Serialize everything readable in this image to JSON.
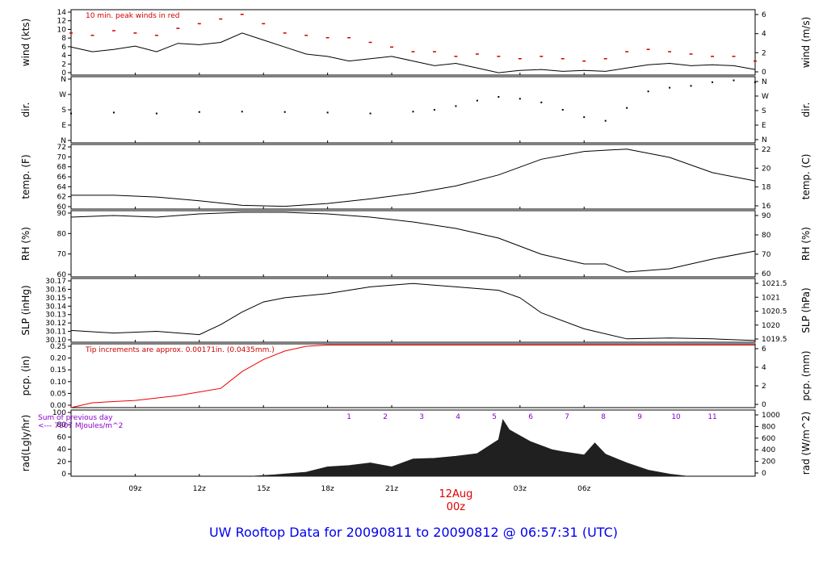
{
  "footer_title": "UW Rooftop Data for 20090811  to  20090812 @ 06:57:31  (UTC)",
  "colors": {
    "trace": "#000000",
    "peak": "#cc0000",
    "precip": "#ee0000",
    "rad": "#202020",
    "sun_hours": "#8800cc",
    "title": "#0000ee",
    "date": "#dd0000"
  },
  "chart_data": [
    {
      "type": "line",
      "ylabel_left": "wind (kts)",
      "ylabel_right": "wind (m/s)",
      "yticks_left": [
        "0",
        "2",
        "4",
        "6",
        "8",
        "10",
        "12",
        "14"
      ],
      "yticks_right": [
        "0",
        "2",
        "4",
        "6"
      ],
      "ylim_left": [
        0,
        14
      ],
      "annotation": "10 min. peak winds in red",
      "series": [
        {
          "values": [
            [
              0,
              6.0
            ],
            [
              1,
              5.0
            ],
            [
              2,
              5.5
            ],
            [
              3,
              6.2
            ],
            [
              4,
              5.0
            ],
            [
              5,
              6.8
            ],
            [
              6,
              6.5
            ],
            [
              7,
              7.0
            ],
            [
              8,
              9.0
            ],
            [
              9,
              7.5
            ],
            [
              10,
              6.0
            ],
            [
              11,
              4.5
            ],
            [
              12,
              4.0
            ],
            [
              13,
              3.0
            ],
            [
              14,
              3.5
            ],
            [
              15,
              4.0
            ],
            [
              16,
              3.0
            ],
            [
              17,
              2.0
            ],
            [
              18,
              2.5
            ],
            [
              19,
              1.5
            ],
            [
              20,
              0.5
            ],
            [
              21,
              1.0
            ],
            [
              22,
              1.2
            ],
            [
              23,
              0.8
            ],
            [
              24,
              1.0
            ],
            [
              25,
              0.8
            ],
            [
              26,
              1.5
            ],
            [
              27,
              2.2
            ],
            [
              28,
              2.5
            ],
            [
              29,
              2.0
            ],
            [
              30,
              2.2
            ],
            [
              31,
              2.0
            ],
            [
              32,
              1.2
            ]
          ]
        },
        {
          "values": [
            [
              0,
              9.0
            ],
            [
              1,
              8.5
            ],
            [
              2,
              9.5
            ],
            [
              3,
              9.0
            ],
            [
              4,
              8.5
            ],
            [
              5,
              10.0
            ],
            [
              6,
              11.0
            ],
            [
              7,
              12.0
            ],
            [
              8,
              13.0
            ],
            [
              9,
              11.0
            ],
            [
              10,
              9.0
            ],
            [
              11,
              8.5
            ],
            [
              12,
              8.0
            ],
            [
              13,
              8.0
            ],
            [
              14,
              7.0
            ],
            [
              15,
              6.0
            ],
            [
              16,
              5.0
            ],
            [
              17,
              5.0
            ],
            [
              18,
              4.0
            ],
            [
              19,
              4.5
            ],
            [
              20,
              4.0
            ],
            [
              21,
              3.5
            ],
            [
              22,
              4.0
            ],
            [
              23,
              3.5
            ],
            [
              24,
              3.0
            ],
            [
              25,
              3.5
            ],
            [
              26,
              5.0
            ],
            [
              27,
              5.5
            ],
            [
              28,
              5.0
            ],
            [
              29,
              4.5
            ],
            [
              30,
              4.0
            ],
            [
              31,
              4.0
            ],
            [
              32,
              3.0
            ]
          ]
        }
      ]
    },
    {
      "type": "scatter",
      "ylabel_left": "dir.",
      "ylabel_right": "dir.",
      "yticks_left": [
        "N",
        "E",
        "S",
        "W",
        "N"
      ],
      "yticks_right": [
        "N",
        "E",
        "S",
        "W",
        "N"
      ],
      "ylim_left": [
        0,
        360
      ],
      "series": [
        {
          "values": [
            [
              0,
              160
            ],
            [
              2,
              165
            ],
            [
              4,
              160
            ],
            [
              6,
              168
            ],
            [
              8,
              170
            ],
            [
              10,
              168
            ],
            [
              12,
              165
            ],
            [
              14,
              160
            ],
            [
              16,
              170
            ],
            [
              17,
              180
            ],
            [
              18,
              200
            ],
            [
              19,
              230
            ],
            [
              20,
              250
            ],
            [
              21,
              240
            ],
            [
              22,
              220
            ],
            [
              23,
              180
            ],
            [
              24,
              140
            ],
            [
              25,
              120
            ],
            [
              26,
              190
            ],
            [
              27,
              280
            ],
            [
              28,
              300
            ],
            [
              29,
              310
            ],
            [
              30,
              330
            ],
            [
              31,
              340
            ],
            [
              32,
              330
            ]
          ]
        }
      ]
    },
    {
      "type": "line",
      "ylabel_left": "temp. (F)",
      "ylabel_right": "temp. (C)",
      "yticks_left": [
        "60",
        "62",
        "64",
        "66",
        "68",
        "70",
        "72"
      ],
      "yticks_right": [
        "16",
        "18",
        "20",
        "22"
      ],
      "ylim_left": [
        59,
        73
      ],
      "series": [
        {
          "values": [
            [
              0,
              62.0
            ],
            [
              2,
              62.0
            ],
            [
              4,
              61.6
            ],
            [
              6,
              60.8
            ],
            [
              8,
              59.8
            ],
            [
              10,
              59.6
            ],
            [
              12,
              60.2
            ],
            [
              14,
              61.2
            ],
            [
              16,
              62.4
            ],
            [
              18,
              64.0
            ],
            [
              20,
              66.4
            ],
            [
              22,
              69.8
            ],
            [
              24,
              71.5
            ],
            [
              26,
              72.0
            ],
            [
              28,
              70.2
            ],
            [
              30,
              66.9
            ],
            [
              32,
              65.1
            ]
          ]
        }
      ]
    },
    {
      "type": "line",
      "ylabel_left": "RH (%)",
      "ylabel_right": "RH (%)",
      "yticks_left": [
        "60",
        "70",
        "80",
        "90"
      ],
      "yticks_right": [
        "60",
        "70",
        "80",
        "90"
      ],
      "ylim_left": [
        54,
        95
      ],
      "series": [
        {
          "values": [
            [
              0,
              91
            ],
            [
              2,
              92
            ],
            [
              4,
              91
            ],
            [
              6,
              93
            ],
            [
              8,
              94
            ],
            [
              10,
              94
            ],
            [
              12,
              93
            ],
            [
              14,
              91
            ],
            [
              16,
              88
            ],
            [
              18,
              84
            ],
            [
              20,
              78
            ],
            [
              22,
              68
            ],
            [
              24,
              62
            ],
            [
              25,
              62
            ],
            [
              26,
              57
            ],
            [
              28,
              59
            ],
            [
              30,
              65
            ],
            [
              32,
              70
            ]
          ]
        }
      ]
    },
    {
      "type": "line",
      "ylabel_left": "SLP (inHg)",
      "ylabel_right": "SLP (hPa)",
      "yticks_left": [
        "30.10",
        "30.11",
        "30.12",
        "30.13",
        "30.14",
        "30.15",
        "30.16",
        "30.17"
      ],
      "yticks_right": [
        "1019.5",
        "1020",
        "1020.5",
        "1021",
        "1021.5"
      ],
      "ylim_left": [
        30.097,
        30.173
      ],
      "series": [
        {
          "values": [
            [
              0,
              30.111
            ],
            [
              2,
              30.108
            ],
            [
              4,
              30.11
            ],
            [
              6,
              30.106
            ],
            [
              7,
              30.118
            ],
            [
              8,
              30.133
            ],
            [
              9,
              30.145
            ],
            [
              10,
              30.15
            ],
            [
              12,
              30.155
            ],
            [
              14,
              30.163
            ],
            [
              16,
              30.167
            ],
            [
              18,
              30.163
            ],
            [
              20,
              30.159
            ],
            [
              21,
              30.15
            ],
            [
              22,
              30.132
            ],
            [
              24,
              30.113
            ],
            [
              26,
              30.101
            ],
            [
              28,
              30.102
            ],
            [
              30,
              30.101
            ],
            [
              32,
              30.099
            ]
          ]
        }
      ]
    },
    {
      "type": "line",
      "ylabel_left": "pcp. (in)",
      "ylabel_right": "pcp. (mm)",
      "yticks_left": [
        "0.00",
        "0.05",
        "0.10",
        "0.15",
        "0.20",
        "0.25"
      ],
      "yticks_right": [
        "0",
        "2",
        "4",
        "6"
      ],
      "ylim_left": [
        0,
        0.265
      ],
      "annotation": "Tip increments are approx. 0.00171in. (0.0435mm.)",
      "series": [
        {
          "values": [
            [
              0,
              0.0
            ],
            [
              1,
              0.02
            ],
            [
              2,
              0.025
            ],
            [
              3,
              0.03
            ],
            [
              4,
              0.04
            ],
            [
              5,
              0.05
            ],
            [
              6,
              0.065
            ],
            [
              7,
              0.08
            ],
            [
              8,
              0.15
            ],
            [
              9,
              0.2
            ],
            [
              10,
              0.235
            ],
            [
              11,
              0.255
            ],
            [
              12,
              0.26
            ],
            [
              32,
              0.26
            ]
          ]
        }
      ]
    },
    {
      "type": "area",
      "ylabel_left": "rad(Lgly/hr)",
      "ylabel_right": "rad (W/m^2)",
      "yticks_left": [
        "0",
        "20",
        "40",
        "60",
        "80",
        "100"
      ],
      "yticks_right": [
        "0",
        "200",
        "400",
        "600",
        "800",
        "1000"
      ],
      "ylim_left": [
        0,
        100
      ],
      "annotation": "Sum of previous day",
      "annotation2": "<--- 7807 MJoules/m^2",
      "sun_hours": [
        "1",
        "2",
        "3",
        "4",
        "5",
        "6",
        "7",
        "8",
        "9",
        "10",
        "11"
      ],
      "series": [
        {
          "values": [
            [
              8.5,
              0
            ],
            [
              9.5,
              2
            ],
            [
              11,
              6
            ],
            [
              12,
              14
            ],
            [
              13,
              16
            ],
            [
              14,
              20
            ],
            [
              15,
              14
            ],
            [
              16,
              26
            ],
            [
              17,
              27
            ],
            [
              18,
              30
            ],
            [
              19,
              34
            ],
            [
              20,
              55
            ],
            [
              20.2,
              85
            ],
            [
              20.5,
              70
            ],
            [
              21.5,
              52
            ],
            [
              22.5,
              40
            ],
            [
              23,
              37
            ],
            [
              24,
              32
            ],
            [
              24.5,
              50
            ],
            [
              25,
              33
            ],
            [
              26,
              20
            ],
            [
              27,
              9
            ],
            [
              28,
              3
            ],
            [
              28.8,
              0
            ]
          ]
        }
      ]
    }
  ],
  "x_axis": {
    "ticks": [
      "09z",
      "12z",
      "15z",
      "18z",
      "21z",
      "03z",
      "06z"
    ],
    "date_label": "12Aug",
    "date_sub": "00z",
    "xlim": [
      0,
      32
    ]
  }
}
